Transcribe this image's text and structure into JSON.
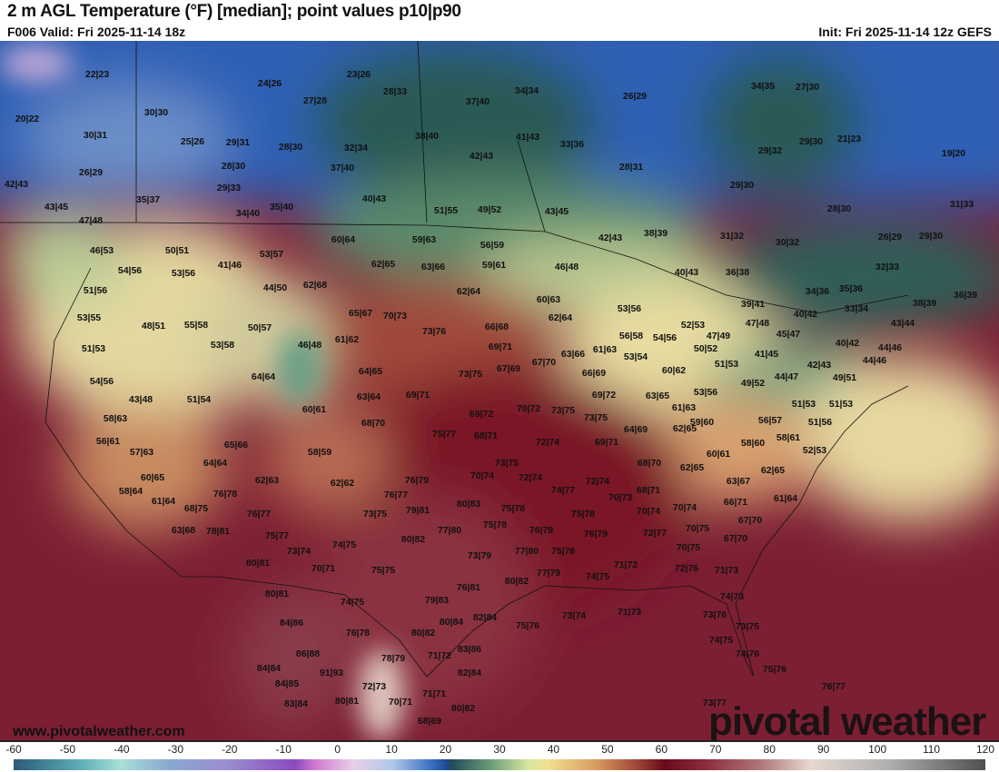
{
  "header": {
    "title": "2 m AGL Temperature (°F) [median]; point values p10|p90",
    "valid": "F006 Valid: Fri 2025-11-14 18z",
    "init": "Init: Fri 2025-11-14 12z GEFS"
  },
  "branding": {
    "site": "www.pivotalweather.com",
    "logo": "pivotal weather"
  },
  "colorbar": {
    "ticks": [
      "-60",
      "-50",
      "-40",
      "-30",
      "-20",
      "-10",
      "0",
      "10",
      "20",
      "30",
      "40",
      "50",
      "60",
      "70",
      "80",
      "90",
      "100",
      "110",
      "120"
    ]
  },
  "colors": {
    "cold": "#2f5fb8",
    "cool": "#2a5a55",
    "mild": "#e8dca0",
    "warm": "#b0584a",
    "hot": "#7c1f33"
  },
  "point_values": [
    "22|23",
    "20|22",
    "30|31",
    "26|29",
    "42|43",
    "43|45",
    "47|48",
    "24|26",
    "23|26",
    "28|33",
    "27|28",
    "30|30",
    "25|26",
    "29|31",
    "28|30",
    "32|34",
    "37|40",
    "34|34",
    "26|29",
    "34|35",
    "27|30",
    "38|40",
    "42|43",
    "41|43",
    "33|36",
    "28|30",
    "37|40",
    "28|31",
    "29|32",
    "29|30",
    "21|23",
    "19|20",
    "29|33",
    "35|37",
    "34|40",
    "35|40",
    "40|43",
    "51|55",
    "49|52",
    "43|45",
    "29|30",
    "28|30",
    "31|33",
    "42|43",
    "38|39",
    "31|32",
    "30|32",
    "26|29",
    "29|30",
    "46|53",
    "50|51",
    "60|64",
    "59|63",
    "56|59",
    "54|56",
    "53|56",
    "41|46",
    "53|57",
    "62|65",
    "63|66",
    "59|61",
    "46|48",
    "40|43",
    "36|38",
    "32|33",
    "51|56",
    "44|50",
    "62|68",
    "62|64",
    "60|63",
    "34|36",
    "35|36",
    "38|39",
    "36|39",
    "53|55",
    "48|51",
    "55|58",
    "65|67",
    "70|73",
    "53|56",
    "62|64",
    "39|41",
    "40|42",
    "33|34",
    "43|44",
    "51|53",
    "50|57",
    "53|58",
    "46|48",
    "61|62",
    "73|76",
    "66|68",
    "56|58",
    "54|56",
    "52|53",
    "47|48",
    "47|49",
    "45|47",
    "69|71",
    "63|66",
    "61|63",
    "53|54",
    "50|52",
    "41|45",
    "40|42",
    "44|46",
    "54|56",
    "64|64",
    "64|65",
    "73|75",
    "67|69",
    "67|70",
    "66|69",
    "60|62",
    "51|53",
    "44|47",
    "42|43",
    "44|46",
    "43|48",
    "51|54",
    "63|64",
    "69|71",
    "69|72",
    "63|65",
    "53|56",
    "49|52",
    "49|51",
    "58|63",
    "60|61",
    "69|72",
    "70|72",
    "73|75",
    "73|75",
    "61|63",
    "51|53",
    "51|53",
    "56|61",
    "68|70",
    "75|77",
    "68|71",
    "59|60",
    "62|65",
    "64|69",
    "56|57",
    "51|56",
    "57|63",
    "65|66",
    "58|59",
    "72|74",
    "69|71",
    "58|60",
    "58|61",
    "52|53",
    "60|61",
    "60|65",
    "64|64",
    "62|63",
    "62|62",
    "73|75",
    "70|74",
    "72|74",
    "68|70",
    "62|65",
    "62|65",
    "63|67",
    "58|64",
    "76|78",
    "76|79",
    "74|77",
    "72|74",
    "61|64",
    "61|64",
    "68|75",
    "76|77",
    "70|73",
    "68|71",
    "70|74",
    "66|71",
    "76|77",
    "73|75",
    "79|81",
    "80|83",
    "75|78",
    "70|74",
    "67|70",
    "63|68",
    "78|81",
    "75|77",
    "77|80",
    "75|78",
    "76|79",
    "75|78",
    "72|77",
    "70|75",
    "73|74",
    "74|75",
    "80|82",
    "73|79",
    "77|80",
    "75|78",
    "76|79",
    "67|70",
    "70|75",
    "80|81",
    "70|71",
    "75|75",
    "80|82",
    "77|79",
    "74|75",
    "71|72",
    "72|76",
    "71|73",
    "80|81",
    "74|75",
    "76|81",
    "79|83",
    "82|84",
    "74|73",
    "84|86",
    "76|78",
    "80|84",
    "75|76",
    "73|74",
    "71|73",
    "73|76",
    "73|75",
    "86|88",
    "80|82",
    "83|86",
    "74|75",
    "74|76",
    "84|84",
    "78|79",
    "71|72",
    "82|84",
    "75|76",
    "84|85",
    "91|93",
    "72|73",
    "71|71",
    "76|77",
    "83|84",
    "80|81",
    "70|71",
    "80|82",
    "73|77",
    "68|69"
  ]
}
